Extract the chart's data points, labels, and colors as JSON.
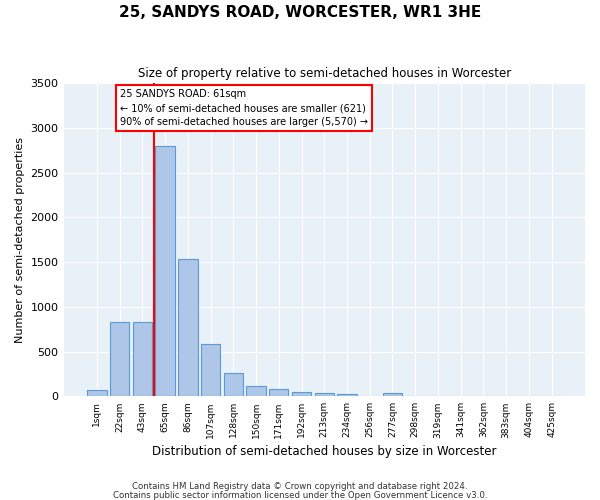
{
  "title": "25, SANDYS ROAD, WORCESTER, WR1 3HE",
  "subtitle": "Size of property relative to semi-detached houses in Worcester",
  "xlabel": "Distribution of semi-detached houses by size in Worcester",
  "ylabel": "Number of semi-detached properties",
  "categories": [
    "1sqm",
    "22sqm",
    "43sqm",
    "65sqm",
    "86sqm",
    "107sqm",
    "128sqm",
    "150sqm",
    "171sqm",
    "192sqm",
    "213sqm",
    "234sqm",
    "256sqm",
    "277sqm",
    "298sqm",
    "319sqm",
    "341sqm",
    "362sqm",
    "383sqm",
    "404sqm",
    "425sqm"
  ],
  "values": [
    70,
    830,
    830,
    2800,
    1530,
    590,
    260,
    110,
    80,
    50,
    40,
    30,
    0,
    40,
    0,
    0,
    0,
    0,
    0,
    0,
    0
  ],
  "bar_color": "#aec6e8",
  "bar_edge_color": "#5b9bd5",
  "red_line_x": 2.5,
  "annotation_title": "25 SANDYS ROAD: 61sqm",
  "annotation_line1": "← 10% of semi-detached houses are smaller (621)",
  "annotation_line2": "90% of semi-detached houses are larger (5,570) →",
  "ylim": [
    0,
    3500
  ],
  "yticks": [
    0,
    500,
    1000,
    1500,
    2000,
    2500,
    3000,
    3500
  ],
  "background_color": "#e8f0f8",
  "footer_line1": "Contains HM Land Registry data © Crown copyright and database right 2024.",
  "footer_line2": "Contains public sector information licensed under the Open Government Licence v3.0."
}
